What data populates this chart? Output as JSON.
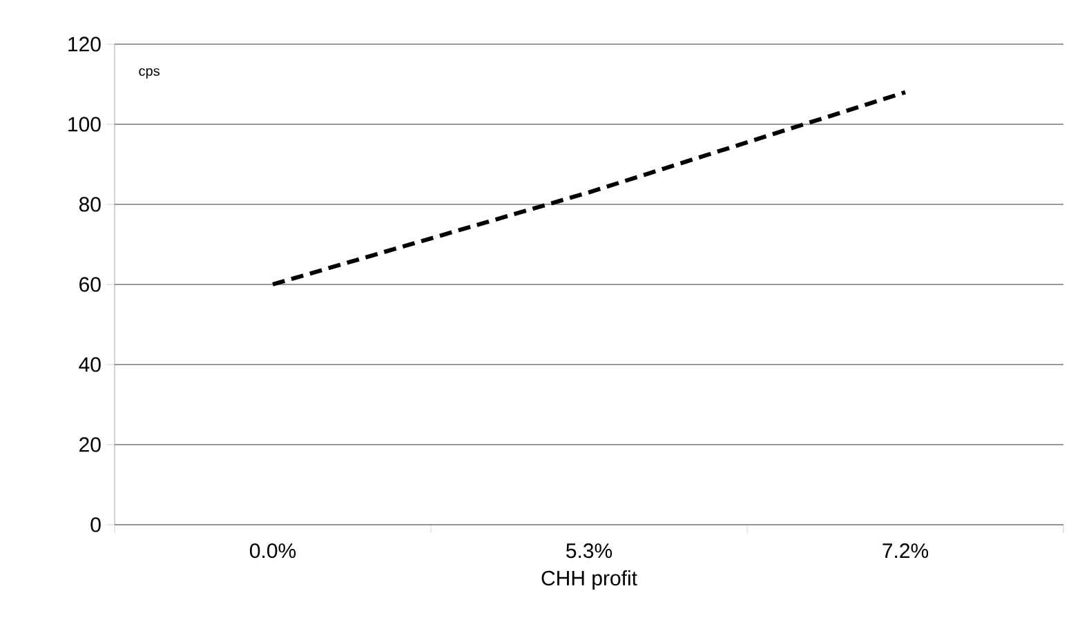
{
  "chart_data": {
    "type": "line",
    "xlabel": "CHH profit",
    "categories": [
      "0.0%",
      "5.3%",
      "7.2%"
    ],
    "series": [
      {
        "color": "#000000",
        "values": [
          60,
          83,
          108
        ]
      }
    ],
    "ylim": [
      0,
      120
    ],
    "yticks": [
      0,
      20,
      40,
      60,
      80,
      100,
      120
    ],
    "grid": "y",
    "line_style": "dashed",
    "marker": "none",
    "annotations": [
      "cps"
    ]
  }
}
